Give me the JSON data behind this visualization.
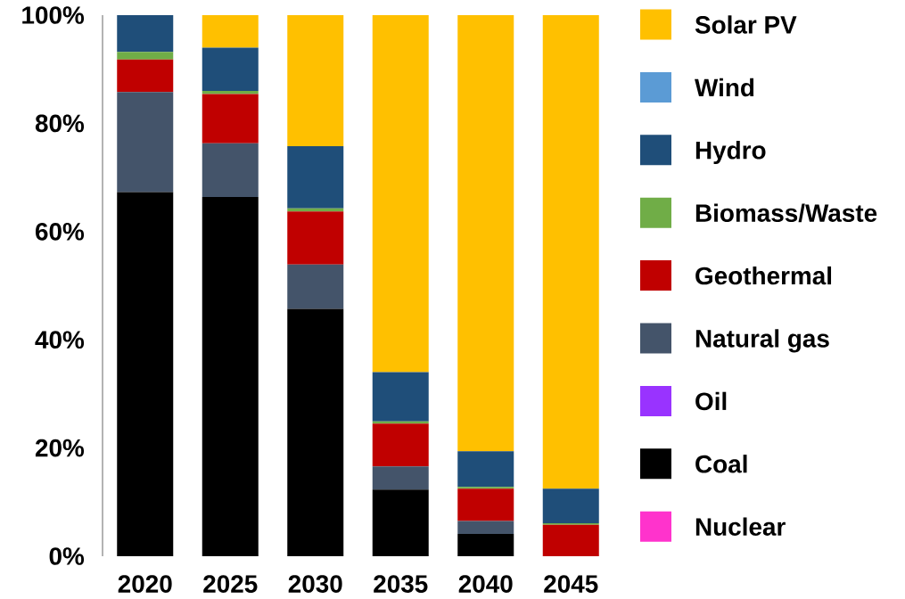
{
  "chart_data": {
    "type": "bar",
    "stacked": true,
    "categories": [
      "2020",
      "2025",
      "2030",
      "2035",
      "2040",
      "2045"
    ],
    "series": [
      {
        "name": "Nuclear",
        "color": "#ff33cc",
        "values": [
          0,
          0,
          0,
          0,
          0,
          0
        ]
      },
      {
        "name": "Coal",
        "color": "#000000",
        "values": [
          67.3,
          66.4,
          45.7,
          12.3,
          4.1,
          0
        ]
      },
      {
        "name": "Oil",
        "color": "#9933ff",
        "values": [
          0,
          0,
          0,
          0,
          0,
          0
        ]
      },
      {
        "name": "Natural gas",
        "color": "#44546a",
        "values": [
          18.5,
          9.9,
          8.2,
          4.3,
          2.4,
          0
        ]
      },
      {
        "name": "Geothermal",
        "color": "#c00000",
        "values": [
          6.0,
          9.1,
          9.8,
          7.9,
          6.0,
          5.8
        ]
      },
      {
        "name": "Biomass/Waste",
        "color": "#70ad47",
        "values": [
          1.4,
          0.6,
          0.6,
          0.4,
          0.3,
          0.3
        ]
      },
      {
        "name": "Hydro",
        "color": "#1f4e79",
        "values": [
          6.8,
          8.0,
          11.5,
          9.1,
          6.6,
          6.4
        ]
      },
      {
        "name": "Wind",
        "color": "#5b9bd5",
        "values": [
          0,
          0,
          0,
          0,
          0,
          0
        ]
      },
      {
        "name": "Solar PV",
        "color": "#ffc000",
        "values": [
          0,
          6.0,
          24.2,
          66.0,
          80.6,
          87.5
        ]
      }
    ],
    "ylim": [
      0,
      100
    ],
    "yticks": [
      {
        "value": 0,
        "label": "0%"
      },
      {
        "value": 20,
        "label": "20%"
      },
      {
        "value": 40,
        "label": "40%"
      },
      {
        "value": 60,
        "label": "60%"
      },
      {
        "value": 80,
        "label": "80%"
      },
      {
        "value": 100,
        "label": "100%"
      }
    ],
    "legend": "right"
  }
}
